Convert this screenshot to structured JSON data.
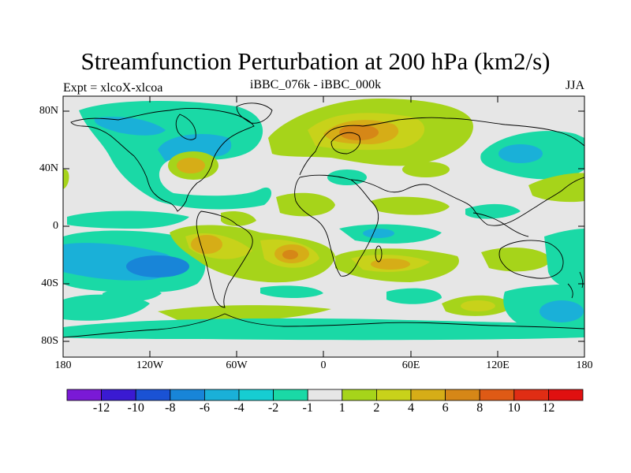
{
  "title": "Streamfunction Perturbation at 200 hPa (km2/s)",
  "left_string": "Expt = xlcoX-xlcoa",
  "center_string": "iBBC_076k - iBBC_000k",
  "right_string": "JJA",
  "map": {
    "projection": "cylindrical equidistant",
    "lon_range": [
      -180,
      180
    ],
    "lat_range": [
      -90,
      90
    ],
    "lat_labels": [
      "80N",
      "40N",
      "0",
      "40S",
      "80S"
    ],
    "lon_labels": [
      "180",
      "120W",
      "60W",
      "0",
      "60E",
      "120E",
      "180"
    ],
    "background_color": "#e6e6e6"
  },
  "colorbar": {
    "labels": [
      "-12",
      "-10",
      "-8",
      "-6",
      "-4",
      "-2",
      "-1",
      "1",
      "2",
      "4",
      "6",
      "8",
      "10",
      "12"
    ],
    "colors": [
      "#7a19d6",
      "#3a1ad2",
      "#1a52d4",
      "#1885d8",
      "#1ab0d8",
      "#16cdd2",
      "#1ad9a6",
      "#e6e6e6",
      "#a6d41a",
      "#c8d21a",
      "#d6ad17",
      "#d68717",
      "#df5a15",
      "#e02d14",
      "#e01010"
    ]
  },
  "chart_data": {
    "type": "heatmap",
    "title": "Streamfunction Perturbation at 200 hPa (km2/s)",
    "subtitle": "iBBC_076k - iBBC_000k",
    "season": "JJA",
    "x": "longitude",
    "y": "latitude",
    "xlim": [
      -180,
      180
    ],
    "ylim": [
      -90,
      90
    ],
    "contour_levels": [
      -12,
      -10,
      -8,
      -6,
      -4,
      -2,
      -1,
      1,
      2,
      4,
      6,
      8,
      10,
      12
    ],
    "features": [
      {
        "name": "north-america-low",
        "lon": -110,
        "lat": 62,
        "value": -3
      },
      {
        "name": "great-lakes-high",
        "lon": -85,
        "lat": 43,
        "value": 3
      },
      {
        "name": "scandinavia-high",
        "lon": 25,
        "lat": 68,
        "value": 6
      },
      {
        "name": "east-asia-low",
        "lon": 130,
        "lat": 50,
        "value": -3
      },
      {
        "name": "south-america-high",
        "lon": -30,
        "lat": -20,
        "value": 5
      },
      {
        "name": "south-pacific-low",
        "lon": -150,
        "lat": -28,
        "value": -5
      },
      {
        "name": "south-africa-high",
        "lon": 30,
        "lat": -35,
        "value": 3
      },
      {
        "name": "southeast-pacific-low",
        "lon": 170,
        "lat": -55,
        "value": -4
      }
    ]
  }
}
